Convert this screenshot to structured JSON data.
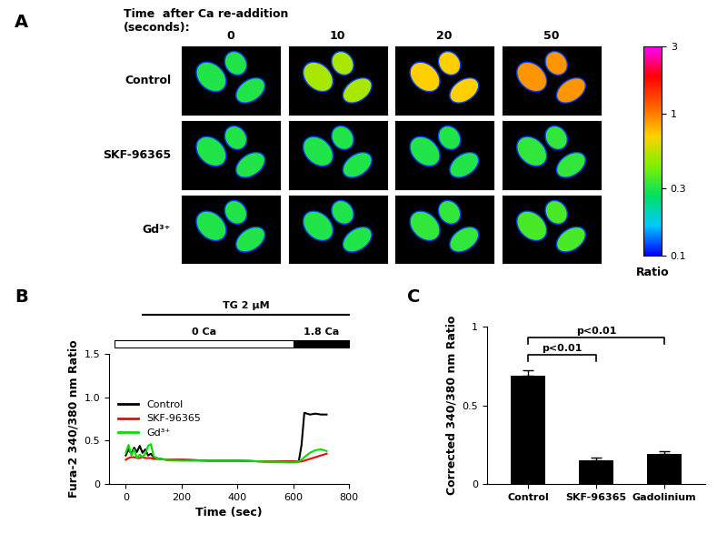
{
  "chart_data": [
    {
      "type": "image_grid",
      "panel": "A",
      "title": "Time  after Ca re-addition\n(seconds):",
      "columns": [
        "0",
        "10",
        "20",
        "50"
      ],
      "rows": [
        "Control",
        "SKF-96365",
        "Gd³⁺"
      ],
      "ratios": [
        [
          0.3,
          0.5,
          0.7,
          0.9
        ],
        [
          0.3,
          0.3,
          0.3,
          0.32
        ],
        [
          0.3,
          0.3,
          0.32,
          0.35
        ]
      ],
      "colorbar": {
        "range": [
          0.1,
          3
        ],
        "ticks": [
          0.1,
          0.3,
          1,
          3
        ],
        "label": "Ratio",
        "log": true
      }
    },
    {
      "type": "line",
      "panel": "B",
      "x": [
        0,
        10,
        20,
        30,
        40,
        50,
        60,
        70,
        80,
        90,
        100,
        110,
        120,
        150,
        200,
        300,
        400,
        500,
        600,
        620,
        630,
        640,
        660,
        680,
        700,
        720
      ],
      "series": [
        {
          "name": "Control",
          "color": "#000000",
          "values": [
            0.33,
            0.4,
            0.35,
            0.42,
            0.37,
            0.44,
            0.36,
            0.4,
            0.33,
            0.35,
            0.31,
            0.3,
            0.29,
            0.28,
            0.28,
            0.27,
            0.27,
            0.26,
            0.26,
            0.26,
            0.45,
            0.82,
            0.8,
            0.81,
            0.8,
            0.8
          ]
        },
        {
          "name": "SKF-96365",
          "color": "#ff0000",
          "values": [
            0.28,
            0.3,
            0.31,
            0.31,
            0.3,
            0.3,
            0.31,
            0.3,
            0.3,
            0.3,
            0.29,
            0.29,
            0.29,
            0.28,
            0.28,
            0.27,
            0.27,
            0.26,
            0.26,
            0.26,
            0.26,
            0.27,
            0.29,
            0.31,
            0.33,
            0.35
          ]
        },
        {
          "name": "Gd³⁺",
          "color": "#00e000",
          "values": [
            0.36,
            0.45,
            0.33,
            0.4,
            0.3,
            0.34,
            0.31,
            0.35,
            0.44,
            0.46,
            0.32,
            0.3,
            0.29,
            0.28,
            0.27,
            0.27,
            0.27,
            0.26,
            0.25,
            0.26,
            0.28,
            0.31,
            0.36,
            0.39,
            0.4,
            0.38
          ]
        }
      ],
      "x_label": "Time (sec)",
      "y_label": "Fura-2 340/380 nm Ratio",
      "xlim": [
        -60,
        800
      ],
      "xticks": [
        0,
        200,
        400,
        600,
        800
      ],
      "ylim": [
        0,
        1.5
      ],
      "yticks": [
        0,
        {
          "value": 0.5,
          "label": "0.5"
        },
        {
          "value": 1.0,
          "label": "1.0"
        },
        {
          "value": 1.5,
          "label": "1.5"
        }
      ],
      "legend": "center left",
      "treatments": [
        {
          "label": "TG 2 μM",
          "start": 60,
          "end": 800,
          "style": "line"
        },
        {
          "label": "0 Ca",
          "start": -40,
          "end": 600,
          "style": "open"
        },
        {
          "label": "1.8 Ca",
          "start": 600,
          "end": 800,
          "style": "filled"
        }
      ]
    },
    {
      "type": "bar",
      "panel": "C",
      "categories": [
        "Control",
        "SKF-96365",
        "Gadolinium"
      ],
      "values": [
        0.69,
        0.15,
        0.19
      ],
      "errors": [
        0.03,
        0.02,
        0.02
      ],
      "color": "#000000",
      "y_label": "Corrected 340/380 nm Ratio",
      "ylim": [
        0,
        1
      ],
      "yticks": [
        0,
        {
          "value": 0.5,
          "label": "0.5"
        },
        1
      ],
      "comparisons": [
        {
          "from": "Control",
          "to": "SKF-96365",
          "label": "p<0.01",
          "y": 0.82
        },
        {
          "from": "Control",
          "to": "Gadolinium",
          "label": "p<0.01",
          "y": 0.93
        }
      ]
    }
  ]
}
